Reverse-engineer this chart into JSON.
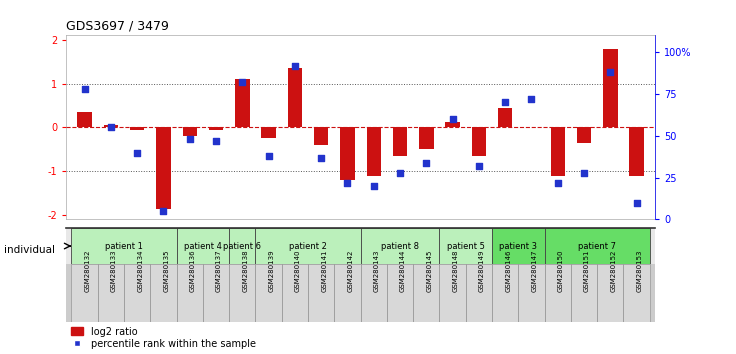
{
  "title": "GDS3697 / 3479",
  "samples": [
    "GSM280132",
    "GSM280133",
    "GSM280134",
    "GSM280135",
    "GSM280136",
    "GSM280137",
    "GSM280138",
    "GSM280139",
    "GSM280140",
    "GSM280141",
    "GSM280142",
    "GSM280143",
    "GSM280144",
    "GSM280145",
    "GSM280148",
    "GSM280149",
    "GSM280146",
    "GSM280147",
    "GSM280150",
    "GSM280151",
    "GSM280152",
    "GSM280153"
  ],
  "log2_ratio": [
    0.35,
    0.05,
    -0.05,
    -1.85,
    -0.2,
    -0.05,
    1.1,
    -0.25,
    1.35,
    -0.4,
    -1.2,
    -1.1,
    -0.65,
    -0.5,
    0.12,
    -0.65,
    0.45,
    0.0,
    -1.1,
    -0.35,
    1.8,
    -1.1
  ],
  "percentile": [
    78,
    55,
    40,
    5,
    48,
    47,
    82,
    38,
    92,
    37,
    22,
    20,
    28,
    34,
    60,
    32,
    70,
    72,
    22,
    28,
    88,
    10
  ],
  "patients": [
    {
      "label": "patient 1",
      "start": 0,
      "end": 4,
      "color": "#bbf0bb"
    },
    {
      "label": "patient 4",
      "start": 4,
      "end": 6,
      "color": "#bbf0bb"
    },
    {
      "label": "patient 6",
      "start": 6,
      "end": 7,
      "color": "#bbf0bb"
    },
    {
      "label": "patient 2",
      "start": 7,
      "end": 11,
      "color": "#bbf0bb"
    },
    {
      "label": "patient 8",
      "start": 11,
      "end": 14,
      "color": "#bbf0bb"
    },
    {
      "label": "patient 5",
      "start": 14,
      "end": 16,
      "color": "#bbf0bb"
    },
    {
      "label": "patient 3",
      "start": 16,
      "end": 18,
      "color": "#66dd66"
    },
    {
      "label": "patient 7",
      "start": 18,
      "end": 22,
      "color": "#66dd66"
    }
  ],
  "bar_color": "#cc1111",
  "scatter_color": "#2233cc",
  "ref_line_color": "#cc1111",
  "dotted_line_color": "#555555",
  "ylim": [
    -2.1,
    2.1
  ],
  "y2lim": [
    0,
    110
  ],
  "yticks": [
    -2,
    -1,
    0,
    1,
    2
  ],
  "y2ticks": [
    0,
    25,
    50,
    75,
    100
  ],
  "y2ticklabels": [
    "0",
    "25",
    "50",
    "75",
    "100%"
  ],
  "background_color": "#ffffff",
  "legend_log2": "log2 ratio",
  "legend_pct": "percentile rank within the sample"
}
